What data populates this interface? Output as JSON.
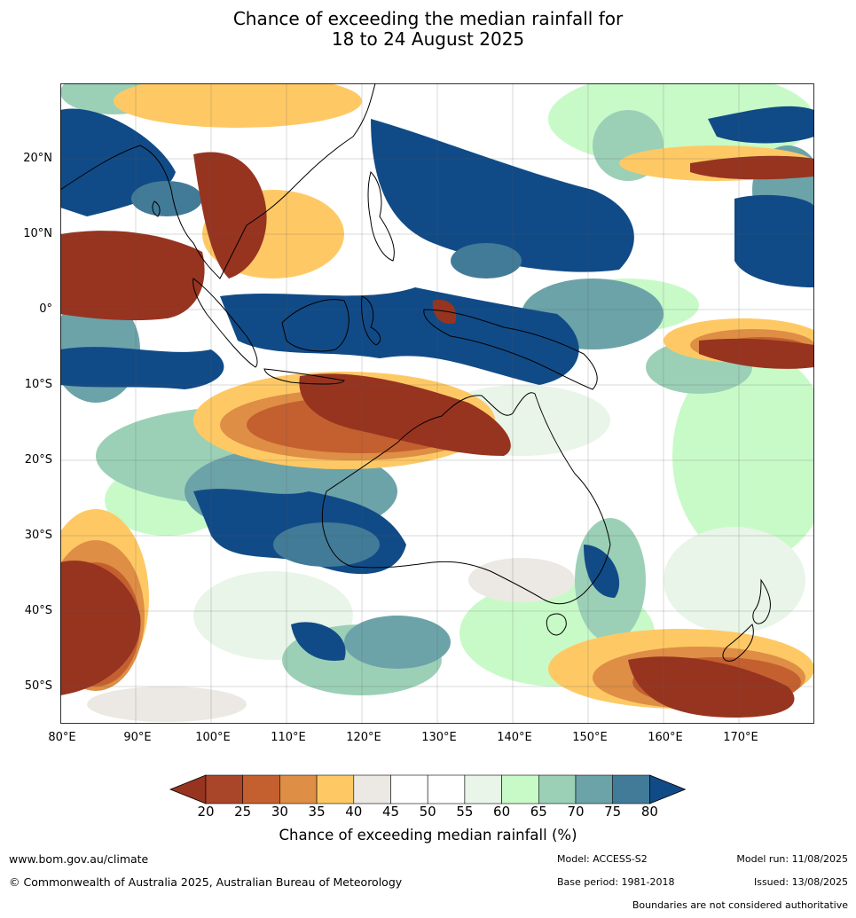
{
  "title_line1": "Chance of exceeding the median rainfall for",
  "title_line2": "18 to 24 August 2025",
  "map": {
    "lat_labels": [
      "20°N",
      "10°N",
      "0°",
      "10°S",
      "20°S",
      "30°S",
      "40°S",
      "50°S"
    ],
    "lon_labels": [
      "80°E",
      "90°E",
      "100°E",
      "110°E",
      "120°E",
      "130°E",
      "140°E",
      "150°E",
      "160°E",
      "170°E"
    ]
  },
  "colorbar": {
    "title": "Chance of exceeding median rainfall (%)",
    "ticks": [
      "20",
      "25",
      "30",
      "35",
      "40",
      "45",
      "50",
      "55",
      "60",
      "65",
      "70",
      "75",
      "80"
    ],
    "colors": [
      "#973420",
      "#a9462a",
      "#c4602f",
      "#de8e45",
      "#fec965",
      "#ece9e4",
      "#ffffff",
      "#ffffff",
      "#e8f5e8",
      "#c8fac8",
      "#9bd0b7",
      "#6ca3a9",
      "#427b98",
      "#114b87"
    ],
    "extend": "both"
  },
  "footer": {
    "url": "www.bom.gov.au/climate",
    "copyright": "© Commonwealth of Australia 2025, Australian Bureau of Meteorology",
    "model": "Model: ACCESS-S2",
    "model_run": "Model run: 11/08/2025",
    "base_period": "Base period: 1981-2018",
    "issued": "Issued: 13/08/2025",
    "disclaimer": "Boundaries are not considered authoritative"
  }
}
